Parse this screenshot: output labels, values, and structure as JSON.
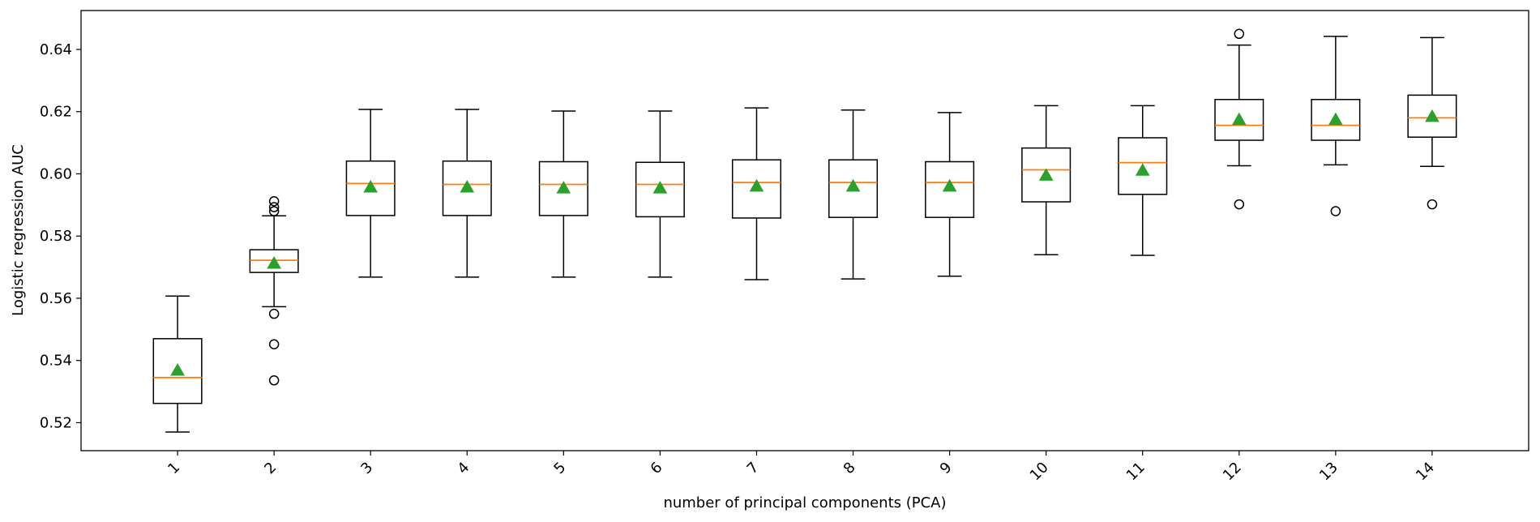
{
  "chart_data": {
    "type": "box",
    "xlabel": "number of principal components (PCA)",
    "ylabel": "Logistic regression AUC",
    "ylim": [
      0.511,
      0.6525
    ],
    "yticks": [
      0.52,
      0.54,
      0.56,
      0.58,
      0.6,
      0.62,
      0.64
    ],
    "ytick_labels": [
      "0.52",
      "0.54",
      "0.56",
      "0.58",
      "0.60",
      "0.62",
      "0.64"
    ],
    "categories": [
      "1",
      "2",
      "3",
      "4",
      "5",
      "6",
      "7",
      "8",
      "9",
      "10",
      "11",
      "12",
      "13",
      "14"
    ],
    "xtick_rotation": 45,
    "colors": {
      "box": "#000000",
      "median": "#ff7f0e",
      "mean": "#2ca02c",
      "outlier": "#000000"
    },
    "boxes": [
      {
        "label": "1",
        "whisker_low": 0.517,
        "q1": 0.5262,
        "median": 0.5345,
        "q3": 0.547,
        "whisker_high": 0.5607,
        "mean": 0.5368,
        "outliers": []
      },
      {
        "label": "2",
        "whisker_low": 0.5573,
        "q1": 0.5683,
        "median": 0.5722,
        "q3": 0.5756,
        "whisker_high": 0.5865,
        "mean": 0.5712,
        "outliers": [
          0.555,
          0.5452,
          0.5336,
          0.588,
          0.5893,
          0.5912
        ]
      },
      {
        "label": "3",
        "whisker_low": 0.5668,
        "q1": 0.5866,
        "median": 0.5969,
        "q3": 0.6041,
        "whisker_high": 0.6207,
        "mean": 0.5957,
        "outliers": []
      },
      {
        "label": "4",
        "whisker_low": 0.5668,
        "q1": 0.5866,
        "median": 0.5966,
        "q3": 0.6041,
        "whisker_high": 0.6207,
        "mean": 0.5957,
        "outliers": []
      },
      {
        "label": "5",
        "whisker_low": 0.5668,
        "q1": 0.5866,
        "median": 0.5966,
        "q3": 0.6039,
        "whisker_high": 0.6202,
        "mean": 0.5954,
        "outliers": []
      },
      {
        "label": "6",
        "whisker_low": 0.5668,
        "q1": 0.5862,
        "median": 0.5966,
        "q3": 0.6037,
        "whisker_high": 0.6202,
        "mean": 0.5954,
        "outliers": []
      },
      {
        "label": "7",
        "whisker_low": 0.566,
        "q1": 0.5858,
        "median": 0.5972,
        "q3": 0.6045,
        "whisker_high": 0.6212,
        "mean": 0.596,
        "outliers": []
      },
      {
        "label": "8",
        "whisker_low": 0.5662,
        "q1": 0.586,
        "median": 0.5972,
        "q3": 0.6045,
        "whisker_high": 0.6205,
        "mean": 0.596,
        "outliers": []
      },
      {
        "label": "9",
        "whisker_low": 0.5671,
        "q1": 0.586,
        "median": 0.5972,
        "q3": 0.6039,
        "whisker_high": 0.6197,
        "mean": 0.596,
        "outliers": []
      },
      {
        "label": "10",
        "whisker_low": 0.574,
        "q1": 0.591,
        "median": 0.6013,
        "q3": 0.6083,
        "whisker_high": 0.6219,
        "mean": 0.5995,
        "outliers": []
      },
      {
        "label": "11",
        "whisker_low": 0.5738,
        "q1": 0.5934,
        "median": 0.6036,
        "q3": 0.6116,
        "whisker_high": 0.6219,
        "mean": 0.6011,
        "outliers": []
      },
      {
        "label": "12",
        "whisker_low": 0.6026,
        "q1": 0.6108,
        "median": 0.6156,
        "q3": 0.6239,
        "whisker_high": 0.6414,
        "mean": 0.6174,
        "outliers": [
          0.645,
          0.5902
        ]
      },
      {
        "label": "13",
        "whisker_low": 0.6029,
        "q1": 0.6108,
        "median": 0.6156,
        "q3": 0.6239,
        "whisker_high": 0.6442,
        "mean": 0.6174,
        "outliers": [
          0.588
        ]
      },
      {
        "label": "14",
        "whisker_low": 0.6024,
        "q1": 0.6118,
        "median": 0.618,
        "q3": 0.6253,
        "whisker_high": 0.6438,
        "mean": 0.6184,
        "outliers": [
          0.5902
        ]
      }
    ]
  }
}
